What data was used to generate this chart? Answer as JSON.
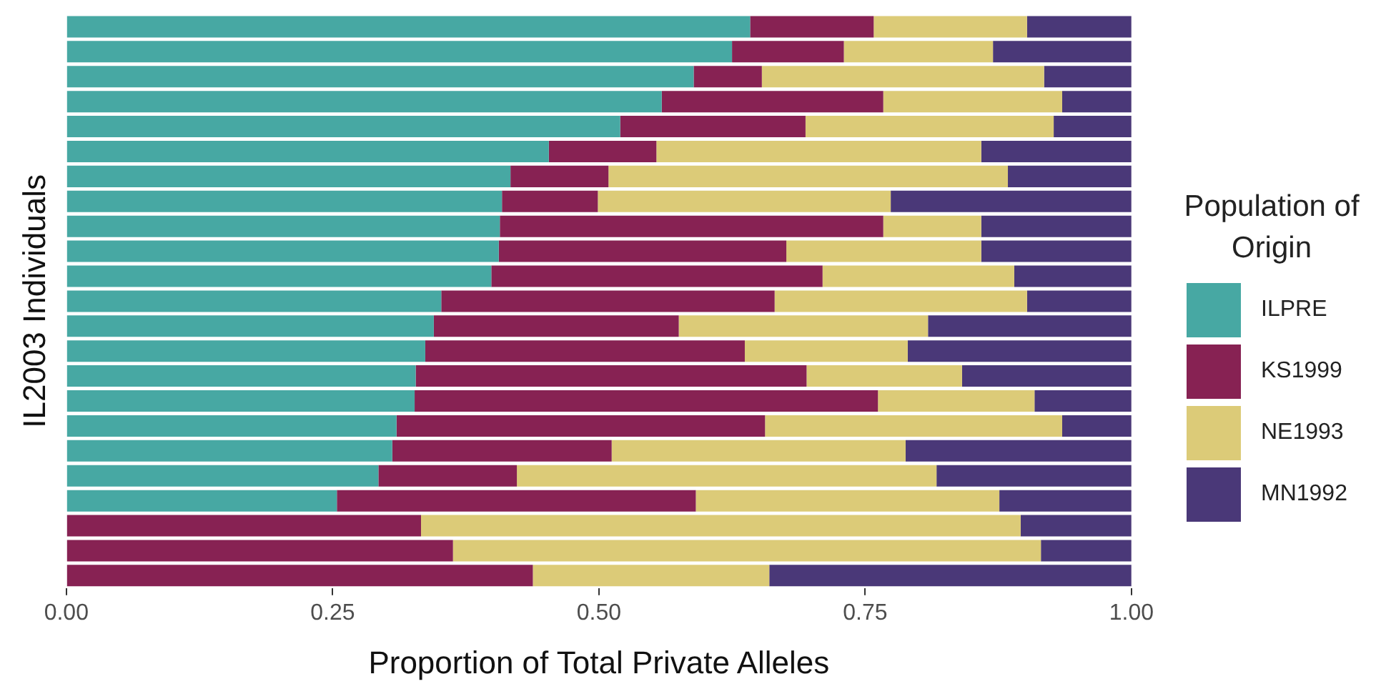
{
  "chart_data": {
    "type": "bar",
    "orientation": "horizontal",
    "stacked": true,
    "xlabel": "Proportion of Total Private Alleles",
    "ylabel": "IL2003 Individuals",
    "legend_title": "Population of Origin",
    "legend": "right",
    "grid": false,
    "tick_labels": "x",
    "categories": [
      null,
      null,
      null,
      null,
      null,
      null,
      null,
      null,
      null,
      null,
      null,
      null,
      null,
      null,
      null,
      null,
      null,
      null,
      null,
      null,
      null,
      null,
      null
    ],
    "xlim": [
      0,
      1
    ],
    "xticks": [
      {
        "value": 0,
        "label": "0.00"
      },
      {
        "value": 0.25,
        "label": "0.25"
      },
      {
        "value": 0.5,
        "label": "0.50"
      },
      {
        "value": 0.75,
        "label": "0.75"
      },
      {
        "value": 1,
        "label": "1.00"
      }
    ],
    "series": [
      {
        "name": "ILPRE",
        "color": "#47a8a3",
        "values": [
          0.642,
          0.625,
          0.589,
          0.559,
          0.52,
          0.453,
          0.417,
          0.409,
          0.407,
          0.406,
          0.399,
          0.352,
          0.345,
          0.337,
          0.328,
          0.327,
          0.31,
          0.306,
          0.293,
          0.254,
          0,
          0,
          0
        ]
      },
      {
        "name": "KS1999",
        "color": "#872253",
        "values": [
          0.116,
          0.105,
          0.064,
          0.208,
          0.174,
          0.101,
          0.092,
          0.09,
          0.36,
          0.27,
          0.311,
          0.313,
          0.23,
          0.3,
          0.367,
          0.435,
          0.346,
          0.206,
          0.13,
          0.337,
          0.333,
          0.363,
          0.438
        ]
      },
      {
        "name": "NE1993",
        "color": "#dccb78",
        "values": [
          0.144,
          0.14,
          0.265,
          0.168,
          0.233,
          0.305,
          0.375,
          0.275,
          0.092,
          0.183,
          0.18,
          0.237,
          0.234,
          0.153,
          0.146,
          0.147,
          0.279,
          0.276,
          0.394,
          0.285,
          0.563,
          0.552,
          0.222
        ]
      },
      {
        "name": "MN1992",
        "color": "#4a3878",
        "values": [
          0.098,
          0.13,
          0.082,
          0.065,
          0.073,
          0.141,
          0.116,
          0.226,
          0.141,
          0.141,
          0.11,
          0.098,
          0.191,
          0.21,
          0.159,
          0.091,
          0.065,
          0.212,
          0.183,
          0.124,
          0.104,
          0.085,
          0.34
        ]
      }
    ]
  }
}
